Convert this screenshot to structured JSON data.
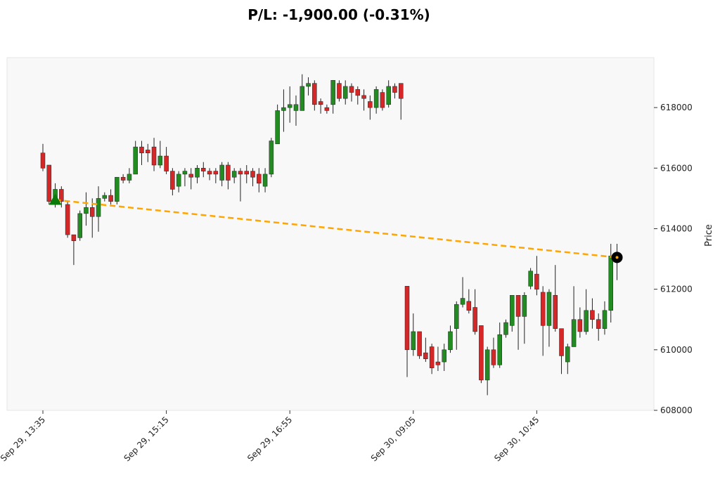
{
  "chart_data": {
    "type": "candlestick",
    "title": "P/L: -1,900.00 (-0.31%)",
    "y_label": "Price",
    "categories": [
      "Sep 29, 13:35",
      null,
      null,
      null,
      null,
      null,
      null,
      null,
      null,
      null,
      null,
      null,
      null,
      null,
      null,
      null,
      null,
      null,
      null,
      null,
      "Sep 29, 15:15",
      null,
      null,
      null,
      null,
      null,
      null,
      null,
      null,
      null,
      null,
      null,
      null,
      null,
      null,
      null,
      null,
      null,
      null,
      null,
      "Sep 29, 16:55",
      null,
      null,
      null,
      null,
      null,
      null,
      null,
      null,
      null,
      null,
      null,
      null,
      null,
      null,
      null,
      null,
      null,
      null,
      null,
      "Sep 30, 09:05",
      null,
      null,
      null,
      null,
      null,
      null,
      null,
      null,
      null,
      null,
      null,
      null,
      null,
      null,
      null,
      null,
      null,
      null,
      null,
      "Sep 30, 10:45",
      null,
      null,
      null,
      null,
      null,
      null,
      null,
      null,
      null,
      null,
      null,
      null,
      null
    ],
    "open": [
      616500,
      616100,
      614900,
      615300,
      614800,
      613800,
      613700,
      614500,
      614700,
      614400,
      615000,
      615100,
      614900,
      615700,
      615600,
      615800,
      616700,
      616600,
      616700,
      616100,
      616400,
      615900,
      615400,
      615800,
      615800,
      615700,
      616000,
      615900,
      615900,
      615600,
      616100,
      615700,
      615900,
      615900,
      615900,
      615800,
      615400,
      615800,
      616800,
      617900,
      618000,
      617900,
      617900,
      618700,
      618800,
      618200,
      618000,
      618100,
      618800,
      618300,
      618700,
      618600,
      618400,
      618200,
      618000,
      618500,
      618100,
      618700,
      618800,
      612100,
      610000,
      610600,
      609900,
      610100,
      609600,
      609600,
      610000,
      610700,
      611500,
      611600,
      611400,
      610800,
      609000,
      610000,
      609500,
      610500,
      610800,
      611800,
      611100,
      612100,
      612500,
      611900,
      610800,
      611800,
      610700,
      609600,
      610100,
      611000,
      610600,
      611300,
      611000,
      610700,
      611300,
      613100
    ],
    "high": [
      616800,
      616100,
      615500,
      615400,
      614900,
      613800,
      614600,
      615200,
      615000,
      615400,
      615200,
      615300,
      615700,
      615800,
      616000,
      616900,
      616900,
      616800,
      617000,
      616900,
      616700,
      616000,
      615900,
      616000,
      616000,
      616100,
      616200,
      616000,
      616000,
      616200,
      616200,
      616000,
      616000,
      616100,
      616000,
      616000,
      616000,
      617000,
      618100,
      618600,
      618700,
      618400,
      619100,
      619000,
      618900,
      618300,
      618100,
      618900,
      618900,
      618900,
      618800,
      618700,
      618600,
      618400,
      618700,
      618600,
      618900,
      618800,
      618800,
      612100,
      611200,
      610600,
      610400,
      610200,
      610100,
      610200,
      610800,
      611600,
      612400,
      612000,
      612000,
      610800,
      610100,
      610400,
      610900,
      611000,
      611800,
      611800,
      611900,
      612700,
      613100,
      612100,
      612000,
      612800,
      610700,
      610200,
      612100,
      611400,
      612000,
      611700,
      611200,
      611600,
      613500,
      613500
    ],
    "low": [
      615900,
      614800,
      614700,
      614700,
      613700,
      612800,
      613600,
      614100,
      613700,
      613900,
      614900,
      614800,
      614800,
      615500,
      615500,
      615800,
      616100,
      616200,
      615900,
      616000,
      615800,
      615100,
      615200,
      615400,
      615300,
      615500,
      615700,
      615600,
      615500,
      615400,
      615300,
      615500,
      614900,
      615500,
      615400,
      615200,
      615200,
      615700,
      616800,
      617200,
      617500,
      617400,
      617900,
      618400,
      617900,
      617800,
      617800,
      617800,
      618200,
      618100,
      618200,
      618100,
      617900,
      617600,
      617800,
      617900,
      618000,
      618300,
      617600,
      609100,
      609800,
      609700,
      609600,
      609200,
      609300,
      609300,
      609900,
      610000,
      611400,
      611200,
      610500,
      608900,
      608500,
      609400,
      609400,
      610400,
      610600,
      610000,
      610200,
      612000,
      611800,
      609800,
      610100,
      610600,
      609200,
      609200,
      610100,
      610400,
      610500,
      610700,
      610300,
      610500,
      610900,
      612300
    ],
    "close": [
      616000,
      614900,
      615300,
      614900,
      613800,
      613600,
      614500,
      614700,
      614400,
      615000,
      615100,
      614900,
      615700,
      615600,
      615800,
      616700,
      616500,
      616500,
      616100,
      616400,
      615900,
      615300,
      615800,
      615900,
      615700,
      616000,
      615900,
      615800,
      615800,
      616100,
      615600,
      615900,
      615800,
      615800,
      615700,
      615500,
      615800,
      616900,
      617900,
      618000,
      618100,
      618100,
      618700,
      618800,
      618100,
      618100,
      617900,
      618900,
      618300,
      618700,
      618500,
      618400,
      618300,
      618000,
      618600,
      618000,
      618700,
      618500,
      618300,
      610000,
      610600,
      609800,
      609700,
      609400,
      609500,
      610000,
      610600,
      611500,
      611700,
      611300,
      610600,
      609000,
      610000,
      609500,
      610500,
      610900,
      611800,
      611100,
      611800,
      612600,
      612000,
      610800,
      611900,
      610700,
      609800,
      610100,
      611000,
      610600,
      611300,
      611000,
      610700,
      611300,
      613100,
      613000
    ],
    "up_color": "#228b22",
    "down_color": "#d62728",
    "ylim": [
      608000,
      619650
    ],
    "yticks": [
      608000,
      610000,
      612000,
      614000,
      616000,
      618000
    ],
    "grid": false,
    "trade": {
      "entry_index": 2,
      "entry_price": 614950,
      "exit_index": 93,
      "exit_price": 613050,
      "line_color": "#ffa500",
      "entry_color": "#0a7a0a",
      "exit_color": "#000000"
    }
  }
}
